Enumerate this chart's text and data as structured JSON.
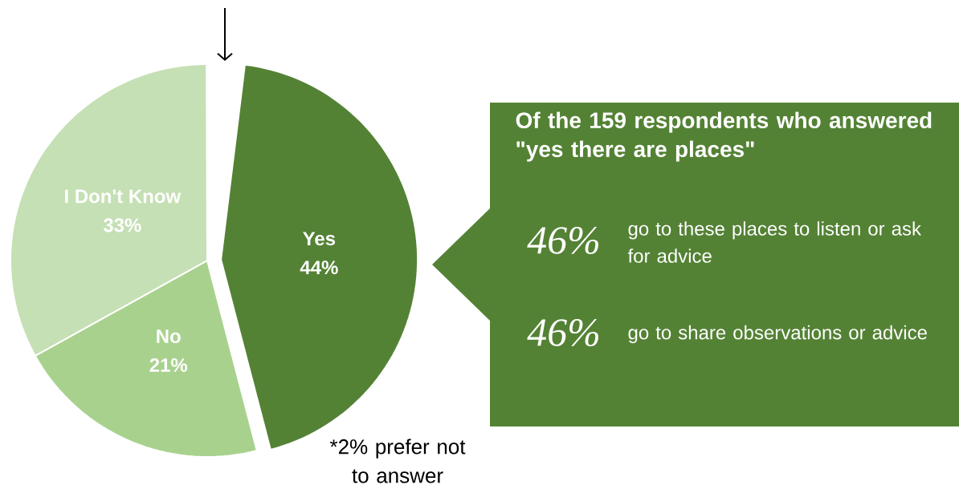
{
  "chart_data": [
    {
      "type": "pie",
      "categories": [
        "Yes",
        "No",
        "I Don't Know"
      ],
      "values": [
        44,
        21,
        33
      ],
      "colors": [
        "#548235",
        "#a9d18e",
        "#c5e0b4"
      ],
      "value_labels": [
        "44%",
        "21%",
        "33%"
      ],
      "annotations": [
        "*2% prefer not to answer"
      ]
    },
    {
      "type": "other",
      "title": "Of the 159 respondents who answered \"yes there are places\"",
      "annotations": [
        "46%",
        "go to these places to listen or ask for advice",
        "46%",
        "go to share observations or advice"
      ]
    }
  ]
}
